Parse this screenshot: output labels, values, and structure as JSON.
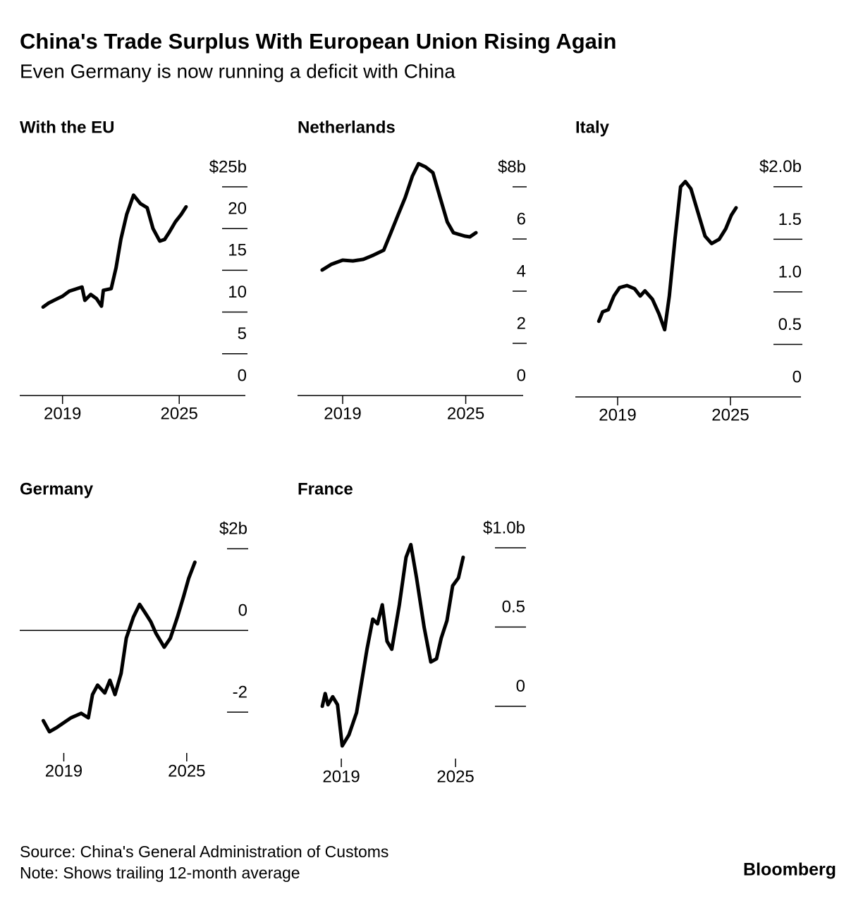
{
  "title": "China's Trade Surplus With European Union Rising Again",
  "subtitle": "Even Germany is now running a deficit with China",
  "source": "Source: China's General Administration of Customs",
  "note": "Note: Shows trailing 12-month average",
  "brand": "Bloomberg",
  "chart_data": [
    {
      "type": "line",
      "title": "With the EU",
      "color": "#000000",
      "zero_line": true,
      "x": [
        2018.0,
        2018.3,
        2018.65,
        2019.0,
        2019.35,
        2019.75,
        2020.0,
        2020.15,
        2020.45,
        2020.75,
        2021.0,
        2021.1,
        2021.5,
        2021.75,
        2022.0,
        2022.3,
        2022.65,
        2023.0,
        2023.35,
        2023.65,
        2024.0,
        2024.25,
        2024.5,
        2024.8,
        2025.1,
        2025.35
      ],
      "values": [
        10.6,
        11.1,
        11.5,
        11.9,
        12.5,
        12.8,
        13.0,
        11.4,
        12.1,
        11.6,
        10.7,
        12.6,
        12.8,
        15.3,
        18.7,
        21.7,
        24.0,
        23.0,
        22.5,
        20.0,
        18.5,
        18.7,
        19.6,
        20.8,
        21.7,
        22.6
      ],
      "xlim": [
        2016.8,
        2028.4
      ],
      "xticks": [
        2019,
        2025
      ],
      "ylim": [
        0,
        25
      ],
      "yticks": [
        0,
        5,
        10,
        15,
        20,
        {
          "value": 25,
          "label": "$25b"
        }
      ]
    },
    {
      "type": "line",
      "title": "Netherlands",
      "color": "#000000",
      "zero_line": true,
      "x": [
        2018.0,
        2018.45,
        2019.0,
        2019.5,
        2020.0,
        2020.5,
        2021.0,
        2021.35,
        2021.7,
        2022.05,
        2022.4,
        2022.7,
        2023.05,
        2023.4,
        2023.75,
        2024.1,
        2024.4,
        2024.95,
        2025.2,
        2025.5
      ],
      "values": [
        4.81,
        5.03,
        5.19,
        5.16,
        5.22,
        5.38,
        5.57,
        6.24,
        6.92,
        7.59,
        8.41,
        8.89,
        8.76,
        8.54,
        7.59,
        6.65,
        6.24,
        6.11,
        6.08,
        6.24
      ],
      "xlim": [
        2016.8,
        2027.8
      ],
      "xticks": [
        2019,
        2025
      ],
      "ylim": [
        0,
        9
      ],
      "yticks": [
        0,
        2,
        4,
        6,
        {
          "value": 8,
          "label": "$8b"
        }
      ]
    },
    {
      "type": "line",
      "title": "Italy",
      "color": "#000000",
      "zero_line": true,
      "x": [
        2018.0,
        2018.2,
        2018.5,
        2018.8,
        2019.1,
        2019.5,
        2019.9,
        2020.2,
        2020.45,
        2020.85,
        2021.2,
        2021.5,
        2021.75,
        2022.05,
        2022.35,
        2022.6,
        2022.9,
        2023.25,
        2023.65,
        2024.0,
        2024.4,
        2024.75,
        2025.05,
        2025.3
      ],
      "values": [
        0.72,
        0.81,
        0.83,
        0.96,
        1.04,
        1.06,
        1.03,
        0.96,
        1.01,
        0.93,
        0.79,
        0.64,
        0.96,
        1.5,
        2.0,
        2.05,
        1.98,
        1.77,
        1.53,
        1.46,
        1.5,
        1.6,
        1.73,
        1.8
      ],
      "xlim": [
        2016.75,
        2028.75
      ],
      "xticks": [
        2019,
        2025
      ],
      "ylim": [
        0,
        2.1
      ],
      "yticks": [
        0,
        0.5,
        {
          "value": 1,
          "label": "1.0"
        },
        1.5,
        {
          "value": 2,
          "label": "$2.0b"
        }
      ]
    },
    {
      "type": "line",
      "title": "Germany",
      "color": "#000000",
      "zero_line": true,
      "x": [
        2018.0,
        2018.3,
        2018.65,
        2019.0,
        2019.35,
        2019.85,
        2020.2,
        2020.4,
        2020.65,
        2021.0,
        2021.25,
        2021.5,
        2021.8,
        2022.05,
        2022.4,
        2022.7,
        2023.0,
        2023.25,
        2023.5,
        2023.9,
        2024.2,
        2024.55,
        2024.85,
        2025.1,
        2025.4
      ],
      "values": [
        -2.21,
        -2.48,
        -2.38,
        -2.26,
        -2.14,
        -2.03,
        -2.14,
        -1.57,
        -1.34,
        -1.53,
        -1.22,
        -1.57,
        -1.05,
        -0.19,
        0.33,
        0.64,
        0.41,
        0.21,
        -0.07,
        -0.41,
        -0.19,
        0.33,
        0.84,
        1.28,
        1.67
      ],
      "xlim": [
        2016.85,
        2028.0
      ],
      "xticks": [
        2019,
        2025
      ],
      "ylim": [
        -3,
        2.3
      ],
      "yticks": [
        -2,
        0,
        {
          "value": 2,
          "label": "$2b"
        }
      ]
    },
    {
      "type": "line",
      "title": "France",
      "color": "#000000",
      "zero_line": false,
      "x": [
        2018.0,
        2018.15,
        2018.3,
        2018.55,
        2018.8,
        2019.05,
        2019.4,
        2019.8,
        2020.05,
        2020.35,
        2020.65,
        2020.9,
        2021.15,
        2021.4,
        2021.65,
        2022.05,
        2022.4,
        2022.65,
        2022.95,
        2023.35,
        2023.7,
        2024.0,
        2024.25,
        2024.55,
        2024.85,
        2025.15,
        2025.4
      ],
      "values": [
        0,
        0.08,
        0.01,
        0.06,
        0.01,
        -0.25,
        -0.18,
        -0.04,
        0.14,
        0.36,
        0.55,
        0.52,
        0.64,
        0.41,
        0.36,
        0.64,
        0.94,
        1.02,
        0.81,
        0.5,
        0.28,
        0.3,
        0.43,
        0.54,
        0.76,
        0.81,
        0.94
      ],
      "xlim": [
        2016.7,
        2028.7
      ],
      "xticks": [
        2019,
        2025
      ],
      "ylim": [
        -0.33,
        1.08
      ],
      "yticks": [
        0,
        0.5,
        {
          "value": 1,
          "label": "$1.0b"
        }
      ]
    }
  ]
}
